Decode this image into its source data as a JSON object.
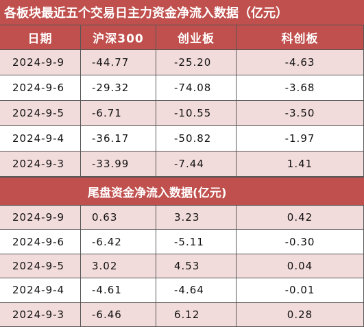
{
  "title": "各板块最近五个交易日主力资金净流入数据（亿元）",
  "header": [
    "日期",
    "沪深300",
    "创业板",
    "科创板"
  ],
  "rows": [
    [
      "2024-9-9",
      "-44.77",
      "-25.20",
      "-4.63"
    ],
    [
      "2024-9-6",
      "-29.32",
      "-74.08",
      "-3.68"
    ],
    [
      "2024-9-5",
      "-6.71",
      "-10.55",
      "-3.50"
    ],
    [
      "2024-9-4",
      "-36.17",
      "-50.82",
      "-1.97"
    ],
    [
      "2024-9-3",
      "-33.99",
      "-7.44",
      "1.41"
    ]
  ],
  "subtitle": "尾盘资金净流入数据(亿元)",
  "rows2": [
    [
      "2024-9-9",
      "0.63",
      "3.23",
      "0.42"
    ],
    [
      "2024-9-6",
      "-6.42",
      "-5.11",
      "-0.30"
    ],
    [
      "2024-9-5",
      "3.02",
      "4.53",
      "0.04"
    ],
    [
      "2024-9-4",
      "-4.61",
      "-4.64",
      "-0.01"
    ],
    [
      "2024-9-3",
      "-6.46",
      "6.12",
      "0.28"
    ]
  ]
}
